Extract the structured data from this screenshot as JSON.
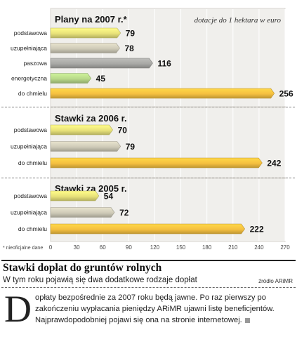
{
  "chart_data": {
    "type": "bar",
    "orientation": "horizontal",
    "xlim": [
      0,
      270
    ],
    "ticks": [
      0,
      30,
      60,
      90,
      120,
      150,
      180,
      210,
      240,
      270
    ],
    "note": "dotacje do 1 hektara w euro",
    "footnote": "* nieoficjalne dane",
    "grid": true,
    "panels": [
      {
        "title": "Plany na 2007 r.*",
        "bars": [
          {
            "category": "podstawowa",
            "value": 79,
            "color": "#e8e27a"
          },
          {
            "category": "uzupełniająca",
            "value": 78,
            "color": "#cfcbb8"
          },
          {
            "category": "paszowa",
            "value": 116,
            "color": "#a9a9a6"
          },
          {
            "category": "energetyczna",
            "value": 45,
            "color": "#b8d98a"
          },
          {
            "category": "do chmielu",
            "value": 256,
            "color": "#f5c040"
          }
        ]
      },
      {
        "title": "Stawki za 2006 r.",
        "bars": [
          {
            "category": "podstawowa",
            "value": 70,
            "color": "#e8e27a"
          },
          {
            "category": "uzupełniająca",
            "value": 79,
            "color": "#cfcbb8"
          },
          {
            "category": "do chmielu",
            "value": 242,
            "color": "#f5c040"
          }
        ]
      },
      {
        "title": "Stawki za 2005 r.",
        "bars": [
          {
            "category": "podstawowa",
            "value": 54,
            "color": "#e8e27a"
          },
          {
            "category": "uzupełniająca",
            "value": 72,
            "color": "#cfcbb8"
          },
          {
            "category": "do chmielu",
            "value": 222,
            "color": "#f5c040"
          }
        ]
      }
    ]
  },
  "article": {
    "headline": "Stawki dopłat do gruntów rolnych",
    "subhead": "W tym roku pojawią się dwa dodatkowe rodzaje dopłat",
    "source": "źródło ARiMR",
    "dropcap": "D",
    "body": "opłaty bezpośrednie za 2007 roku będą jawne. Po raz pierwszy po zakończeniu wypłacania pieniędzy ARiMR ujawni listę beneficjentów. Najprawdopodobniej pojawi się ona na stronie internetowej."
  }
}
